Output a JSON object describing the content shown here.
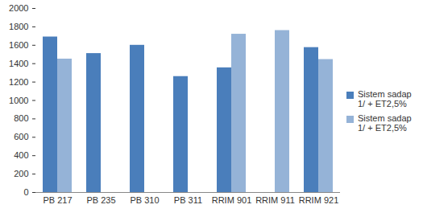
{
  "chart_data": {
    "type": "bar",
    "categories": [
      "PB 217",
      "PB 235",
      "PB 310",
      "PB 311",
      "RRIM 901",
      "RRIM 911",
      "RRIM 921"
    ],
    "series": [
      {
        "name": "Sistem sadap 1/ + ET2,5%",
        "color": "#4a7ebb",
        "values": [
          1690,
          1510,
          1600,
          1260,
          1355,
          null,
          1575
        ]
      },
      {
        "name": "Sistem sadap 1/ + ET2,5%",
        "color": "#95b3d7",
        "values": [
          1450,
          null,
          null,
          null,
          1720,
          1760,
          1445
        ]
      }
    ],
    "ylim": [
      0,
      2000
    ],
    "yticks": [
      0,
      200,
      400,
      600,
      800,
      1000,
      1200,
      1400,
      1600,
      1800,
      2000
    ],
    "grid": false,
    "legend": "right"
  }
}
